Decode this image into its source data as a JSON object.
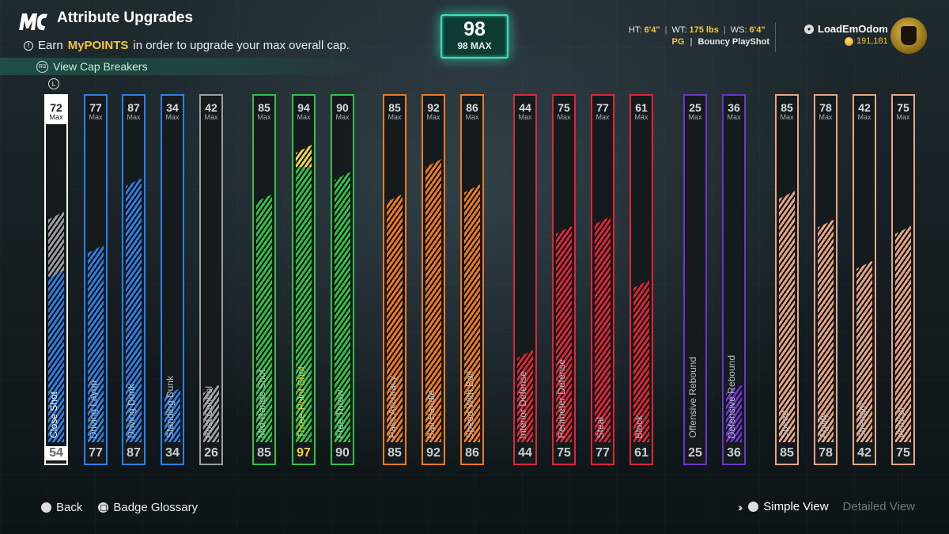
{
  "header": {
    "title": "Attribute Upgrades",
    "subtitle_prefix": "Earn",
    "subtitle_highlight": "MyPOINTS",
    "subtitle_suffix": "in order to upgrade your max overall cap.",
    "cap_breakers": "View Cap Breakers",
    "r3_label": "R3",
    "l_label": "L"
  },
  "overall": {
    "value": "98",
    "max_label": "98 MAX"
  },
  "player": {
    "ht_label": "HT:",
    "ht": "6'4\"",
    "wt_label": "WT:",
    "wt": "175 lbs",
    "ws_label": "WS:",
    "ws": "6'4\"",
    "position": "PG",
    "build": "Bouncy PlayShot",
    "username": "LoadEmOdom",
    "coins": "191,181"
  },
  "colors": {
    "finishing": "#2f7fe0",
    "shooting": "#33c048",
    "playmaking": "#ee7a22",
    "defense": "#d9283a",
    "rebounding": "#6a35c8",
    "physicals": "#e8a585",
    "gray": "#9a9ea2",
    "highlight": "#f5d442",
    "white": "#ffffff"
  },
  "attributes": [
    {
      "name": "Close Shot",
      "max": "72",
      "current": "54",
      "group": "finishing",
      "fill": 0.54,
      "extra": 0.18,
      "selected": true
    },
    {
      "name": "Driving Layup",
      "max": "77",
      "current": "77",
      "group": "finishing",
      "fill": 0.62
    },
    {
      "name": "Driving Dunk",
      "max": "87",
      "current": "87",
      "group": "finishing",
      "fill": 0.83
    },
    {
      "name": "Standing Dunk",
      "max": "34",
      "current": "34",
      "group": "finishing",
      "fill": 0.17
    },
    {
      "name": "Post Control",
      "max": "42",
      "current": "26",
      "group": "gray",
      "fill": 0.18
    },
    {
      "name": "Mid-Range Shot",
      "max": "85",
      "current": "85",
      "group": "shooting",
      "fill": 0.78
    },
    {
      "name": "Three-Point Shot",
      "max": "94",
      "current": "97",
      "group": "shooting",
      "fill": 0.91,
      "highlight": true
    },
    {
      "name": "Free Throw",
      "max": "90",
      "current": "90",
      "group": "shooting",
      "fill": 0.85
    },
    {
      "name": "Pass Accuracy",
      "max": "85",
      "current": "85",
      "group": "playmaking",
      "fill": 0.78
    },
    {
      "name": "Ball Handle",
      "max": "92",
      "current": "92",
      "group": "playmaking",
      "fill": 0.89
    },
    {
      "name": "Speed With Ball",
      "max": "86",
      "current": "86",
      "group": "playmaking",
      "fill": 0.81
    },
    {
      "name": "Interior Defense",
      "max": "44",
      "current": "44",
      "group": "defense",
      "fill": 0.29
    },
    {
      "name": "Perimeter Defense",
      "max": "75",
      "current": "75",
      "group": "defense",
      "fill": 0.68
    },
    {
      "name": "Steal",
      "max": "77",
      "current": "77",
      "group": "defense",
      "fill": 0.71
    },
    {
      "name": "Block",
      "max": "61",
      "current": "61",
      "group": "defense",
      "fill": 0.51
    },
    {
      "name": "Offensive Rebound",
      "max": "25",
      "current": "25",
      "group": "rebounding",
      "fill": 0.0
    },
    {
      "name": "Defensive Rebound",
      "max": "36",
      "current": "36",
      "group": "rebounding",
      "fill": 0.18
    },
    {
      "name": "Speed",
      "max": "85",
      "current": "85",
      "group": "physicals",
      "fill": 0.79
    },
    {
      "name": "Agility",
      "max": "78",
      "current": "78",
      "group": "physicals",
      "fill": 0.7
    },
    {
      "name": "Strength",
      "max": "42",
      "current": "42",
      "group": "physicals",
      "fill": 0.57
    },
    {
      "name": "Vertical",
      "max": "75",
      "current": "75",
      "group": "physicals",
      "fill": 0.68
    }
  ],
  "max_label": "Max",
  "footer": {
    "back": "Back",
    "glossary": "Badge Glossary",
    "simple_view": "Simple View",
    "detailed_view": "Detailed View"
  }
}
